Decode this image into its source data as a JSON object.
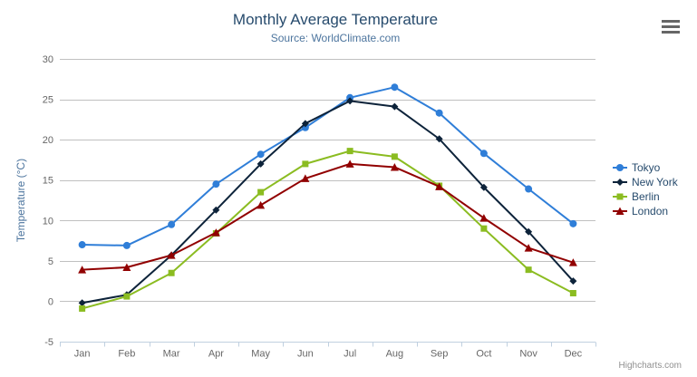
{
  "chart": {
    "title": "Monthly Average Temperature",
    "subtitle": "Source: WorldClimate.com",
    "credits_label": "Highcharts.com"
  },
  "chart_data": {
    "type": "line",
    "title": "Monthly Average Temperature",
    "subtitle": "Source: WorldClimate.com",
    "categories": [
      "Jan",
      "Feb",
      "Mar",
      "Apr",
      "May",
      "Jun",
      "Jul",
      "Aug",
      "Sep",
      "Oct",
      "Nov",
      "Dec"
    ],
    "xlabel": "",
    "ylabel": "Temperature (°C)",
    "ylim": [
      -5,
      30
    ],
    "yticks": [
      -5,
      0,
      5,
      10,
      15,
      20,
      25,
      30
    ],
    "grid": true,
    "legend_position": "right",
    "series": [
      {
        "name": "Tokyo",
        "color": "#2f7ed8",
        "marker": "circle",
        "values": [
          7.0,
          6.9,
          9.5,
          14.5,
          18.2,
          21.5,
          25.2,
          26.5,
          23.3,
          18.3,
          13.9,
          9.6
        ]
      },
      {
        "name": "New York",
        "color": "#0d233a",
        "marker": "diamond",
        "values": [
          -0.2,
          0.8,
          5.7,
          11.3,
          17.0,
          22.0,
          24.8,
          24.1,
          20.1,
          14.1,
          8.6,
          2.5
        ]
      },
      {
        "name": "Berlin",
        "color": "#8bbc21",
        "marker": "square",
        "values": [
          -0.9,
          0.6,
          3.5,
          8.4,
          13.5,
          17.0,
          18.6,
          17.9,
          14.3,
          9.0,
          3.9,
          1.0
        ]
      },
      {
        "name": "London",
        "color": "#910000",
        "marker": "triangle",
        "values": [
          3.9,
          4.2,
          5.7,
          8.5,
          11.9,
          15.2,
          17.0,
          16.6,
          14.2,
          10.3,
          6.6,
          4.8
        ]
      }
    ]
  },
  "style": {
    "background": "#ffffff",
    "title_color": "#274b6d",
    "subtitle_color": "#4d759e",
    "axis_title_color": "#4d759e",
    "axis_label_color": "#666666",
    "grid_color": "#c0c0c0",
    "axis_line_color": "#c0d0e0",
    "legend_text_color": "#274b6d",
    "credits_color": "#909090",
    "menu_icon_color": "#666666"
  }
}
